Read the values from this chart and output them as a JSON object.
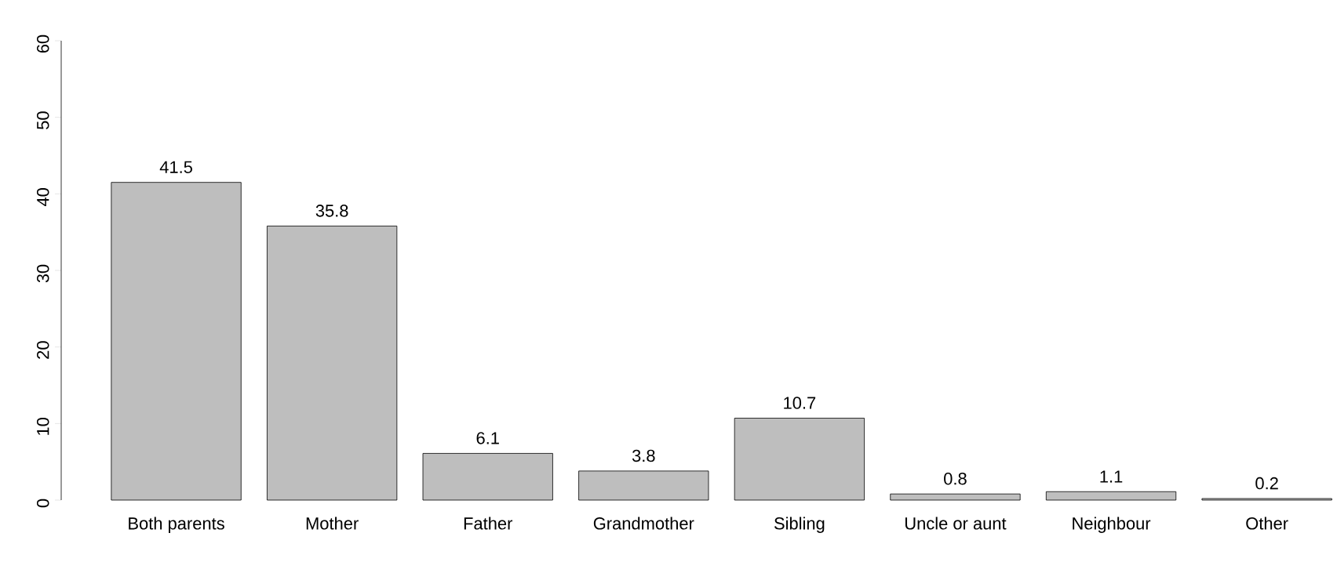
{
  "chart_data": {
    "type": "bar",
    "categories": [
      "Both parents",
      "Mother",
      "Father",
      "Grandmother",
      "Sibling",
      "Uncle or aunt",
      "Neighbour",
      "Other"
    ],
    "values": [
      41.5,
      35.8,
      6.1,
      3.8,
      10.7,
      0.8,
      1.1,
      0.2
    ],
    "color": "#bebebe",
    "data_labels": true,
    "ylim": [
      0,
      60
    ],
    "yticks": [
      0,
      10,
      20,
      30,
      40,
      50,
      60
    ],
    "grid": false
  }
}
